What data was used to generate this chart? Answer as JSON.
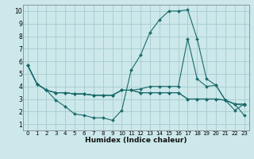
{
  "xlabel": "Humidex (Indice chaleur)",
  "xlim": [
    -0.5,
    23.5
  ],
  "ylim": [
    0.5,
    10.5
  ],
  "xticks": [
    0,
    1,
    2,
    3,
    4,
    5,
    6,
    7,
    8,
    9,
    10,
    11,
    12,
    13,
    14,
    15,
    16,
    17,
    18,
    19,
    20,
    21,
    22,
    23
  ],
  "yticks": [
    1,
    2,
    3,
    4,
    5,
    6,
    7,
    8,
    9,
    10
  ],
  "bg_color": "#cce8ea",
  "line_color": "#1a6b6b",
  "grid_color": "#aacfd2",
  "line1_x": [
    0,
    1,
    2,
    3,
    4,
    5,
    6,
    7,
    8,
    9,
    10,
    11,
    12,
    13,
    14,
    15,
    16,
    17,
    18,
    19,
    20,
    21,
    22,
    23
  ],
  "line1_y": [
    5.7,
    4.2,
    3.7,
    2.9,
    2.4,
    1.8,
    1.7,
    1.5,
    1.5,
    1.3,
    2.1,
    5.3,
    6.5,
    8.3,
    9.3,
    10.0,
    10.0,
    10.1,
    7.8,
    4.6,
    4.1,
    2.9,
    2.6,
    1.7
  ],
  "line2_x": [
    0,
    1,
    2,
    3,
    4,
    5,
    6,
    7,
    8,
    9,
    10,
    11,
    12,
    13,
    14,
    15,
    16,
    17,
    18,
    19,
    20,
    21,
    22,
    23
  ],
  "line2_y": [
    5.7,
    4.2,
    3.7,
    3.5,
    3.5,
    3.4,
    3.4,
    3.3,
    3.3,
    3.3,
    3.7,
    3.7,
    3.8,
    4.0,
    4.0,
    4.0,
    4.0,
    7.8,
    4.6,
    4.0,
    4.1,
    2.9,
    2.6,
    2.5
  ],
  "line3_x": [
    0,
    1,
    2,
    3,
    4,
    5,
    6,
    7,
    8,
    9,
    10,
    11,
    12,
    13,
    14,
    15,
    16,
    17,
    18,
    19,
    20,
    21,
    22,
    23
  ],
  "line3_y": [
    5.7,
    4.2,
    3.7,
    3.5,
    3.5,
    3.4,
    3.4,
    3.3,
    3.3,
    3.3,
    3.7,
    3.7,
    3.5,
    3.5,
    3.5,
    3.5,
    3.5,
    3.0,
    3.0,
    3.0,
    3.0,
    2.9,
    2.6,
    2.6
  ],
  "line4_x": [
    0,
    1,
    2,
    3,
    4,
    5,
    6,
    7,
    8,
    9,
    10,
    11,
    12,
    13,
    14,
    15,
    16,
    17,
    18,
    19,
    20,
    21,
    22,
    23
  ],
  "line4_y": [
    5.7,
    4.2,
    3.7,
    3.5,
    3.5,
    3.4,
    3.4,
    3.3,
    3.3,
    3.3,
    3.7,
    3.7,
    3.5,
    3.5,
    3.5,
    3.5,
    3.5,
    3.0,
    3.0,
    3.0,
    3.0,
    2.9,
    2.1,
    2.6
  ]
}
